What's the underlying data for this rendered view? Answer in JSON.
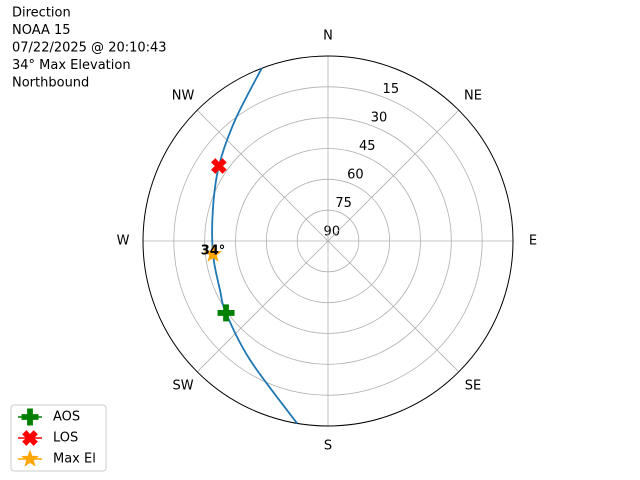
{
  "chart_data": {
    "type": "polar",
    "title_lines": [
      "Direction",
      "NOAA 15",
      "07/22/2025 @ 20:10:43",
      "34° Max Elevation",
      "Northbound"
    ],
    "rlim": [
      90,
      0
    ],
    "rticks": [
      15,
      30,
      45,
      60,
      75,
      90
    ],
    "thetaticks": [
      {
        "value": 0,
        "label": "N"
      },
      {
        "value": 45,
        "label": "NE"
      },
      {
        "value": 90,
        "label": "E"
      },
      {
        "value": 135,
        "label": "SE"
      },
      {
        "value": 180,
        "label": "S"
      },
      {
        "value": 225,
        "label": "SW"
      },
      {
        "value": 270,
        "label": "W"
      },
      {
        "value": 315,
        "label": "NW"
      }
    ],
    "grid": true,
    "legend": "lower left",
    "track": {
      "color": "#1f77b4",
      "x": [
        339,
        322.5,
        304.5,
        285,
        263.5,
        245.6,
        234.8,
        213.2,
        189.6
      ],
      "values": [
        0,
        15.8,
        25.6,
        32,
        33.7,
        32.3,
        29.3,
        20.8,
        0
      ]
    },
    "series": [
      {
        "name": "AOS",
        "color": "green",
        "marker": "plus",
        "x": [
          234.8
        ],
        "values": [
          29.3
        ]
      },
      {
        "name": "LOS",
        "color": "red",
        "marker": "x",
        "x": [
          304.5
        ],
        "values": [
          25.6
        ]
      },
      {
        "name": "Max El",
        "color": "orange",
        "marker": "star",
        "x": [
          263.5
        ],
        "values": [
          33.7
        ],
        "value_labels": [
          "34°"
        ]
      }
    ]
  }
}
